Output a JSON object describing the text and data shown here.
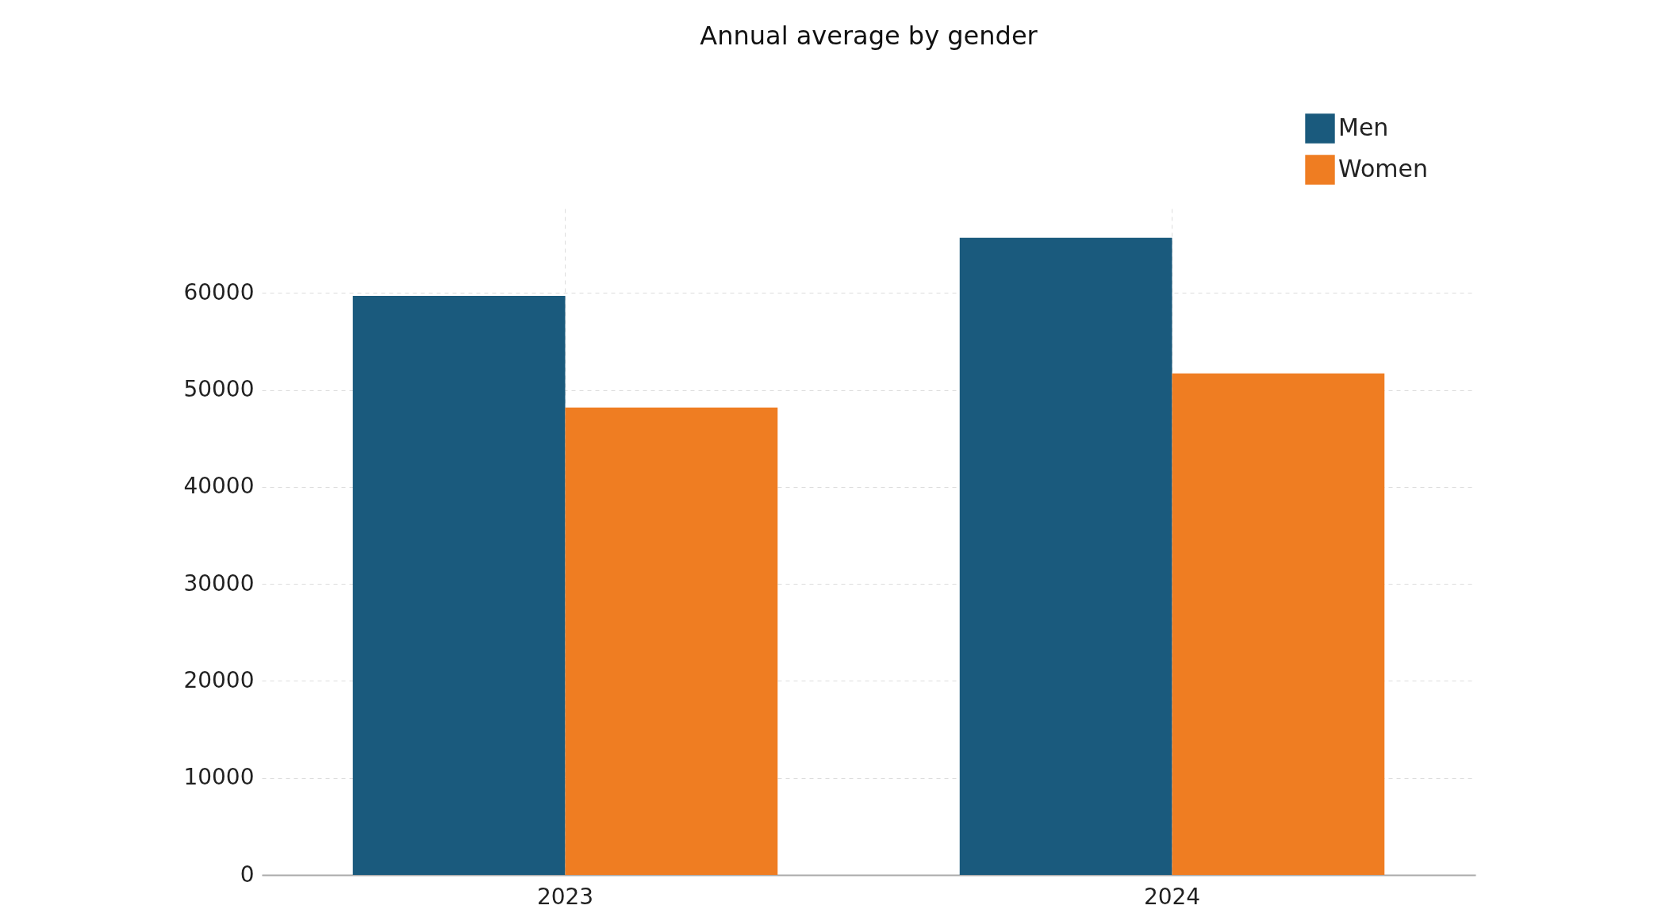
{
  "chart_data": {
    "type": "bar",
    "title": "Annual average by gender",
    "categories": [
      "2023",
      "2024"
    ],
    "series": [
      {
        "name": "Men",
        "color": "#1a5a7d",
        "values": [
          59700,
          65700
        ]
      },
      {
        "name": "Women",
        "color": "#ef7d22",
        "values": [
          48200,
          51700
        ]
      }
    ],
    "ylim": [
      0,
      68700
    ],
    "yticks": [
      0,
      10000,
      20000,
      30000,
      40000,
      50000,
      60000
    ],
    "grid": true,
    "legend": "top right"
  }
}
